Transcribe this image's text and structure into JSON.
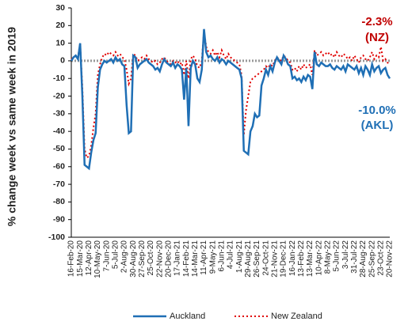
{
  "chart_data": {
    "type": "line",
    "ylabel": "% change week vs same week in 2019",
    "categories": [
      "16-Feb-20",
      null,
      null,
      null,
      "15-Mar-20",
      null,
      null,
      null,
      "12-Apr-20",
      null,
      null,
      null,
      "10-May-20",
      null,
      null,
      null,
      "7-Jun-20",
      null,
      null,
      null,
      "5-Jul-20",
      null,
      null,
      null,
      "2-Aug-20",
      null,
      null,
      null,
      "30-Aug-20",
      null,
      null,
      null,
      "27-Sep-20",
      null,
      null,
      null,
      "25-Oct-20",
      null,
      null,
      null,
      "22-Nov-20",
      null,
      null,
      null,
      "20-Dec-20",
      null,
      null,
      null,
      "17-Jan-21",
      null,
      null,
      null,
      "14-Feb-21",
      null,
      null,
      null,
      "14-Mar-21",
      null,
      null,
      null,
      "11-Apr-21",
      null,
      null,
      null,
      "9-May-21",
      null,
      null,
      null,
      "6-Jun-21",
      null,
      null,
      null,
      "4-Jul-21",
      null,
      null,
      null,
      "1-Aug-21",
      null,
      null,
      null,
      "29-Aug-21",
      null,
      null,
      null,
      "26-Sep-21",
      null,
      null,
      null,
      "24-Oct-21",
      null,
      null,
      null,
      "21-Nov-21",
      null,
      null,
      null,
      "19-Dec-21",
      null,
      null,
      null,
      "16-Jan-22",
      null,
      null,
      null,
      "13-Feb-22",
      null,
      null,
      null,
      "13-Mar-22",
      null,
      null,
      null,
      "10-Apr-22",
      null,
      null,
      null,
      "8-May-22",
      null,
      null,
      null,
      "5-Jun-22",
      null,
      null,
      null,
      "3-Jul-22",
      null,
      null,
      null,
      "31-Jul-22",
      null,
      null,
      null,
      "28-Aug-22",
      null,
      null,
      null,
      "25-Sep-22",
      null,
      null,
      null,
      "23-Oct-22",
      null,
      null,
      null,
      "20-Nov-22"
    ],
    "series": [
      {
        "name": "Auckland",
        "color": "#1f6fb5",
        "style": "solid",
        "values": [
          0,
          2,
          3,
          1,
          10,
          -20,
          -59,
          -60,
          -61,
          -52,
          -45,
          -41,
          -15,
          -5,
          -2,
          0,
          -1,
          0,
          1,
          -1,
          2,
          0,
          1,
          -2,
          -3,
          -25,
          -41,
          -40,
          3,
          2,
          -4,
          -2,
          -1,
          0,
          1,
          -1,
          -2,
          -3,
          -5,
          -4,
          -6,
          -2,
          1,
          -1,
          -2,
          -3,
          -1,
          -4,
          -2,
          -3,
          -5,
          -22,
          -4,
          -37,
          -4,
          0,
          -2,
          -10,
          -12,
          -5,
          18,
          5,
          2,
          3,
          1,
          0,
          2,
          -1,
          1,
          0,
          -2,
          0,
          -1,
          -2,
          -3,
          -4,
          -5,
          -10,
          -51,
          -52,
          -53,
          -40,
          -37,
          -30,
          -32,
          -31,
          -14,
          -10,
          -5,
          -8,
          -3,
          -6,
          -1,
          2,
          0,
          -2,
          3,
          1,
          -2,
          -3,
          -10,
          -9,
          -11,
          -10,
          -12,
          -9,
          -11,
          -8,
          -9,
          -16,
          5,
          -2,
          -3,
          -1,
          -2,
          -3,
          -3,
          -2,
          -4,
          -5,
          -3,
          -4,
          -5,
          -3,
          -6,
          -2,
          -3,
          -4,
          -5,
          -3,
          -7,
          -4,
          -8,
          -3,
          -5,
          -8,
          -2,
          -6,
          -4,
          -3,
          -7,
          -5,
          -4,
          -8,
          -10
        ]
      },
      {
        "name": "New Zealand",
        "color": "#e00000",
        "style": "dotted",
        "values": [
          1,
          2,
          3,
          2,
          10,
          -15,
          -50,
          -55,
          -54,
          -48,
          -38,
          -30,
          -8,
          -2,
          2,
          4,
          3,
          5,
          4,
          3,
          5,
          3,
          4,
          2,
          1,
          -5,
          -13,
          -10,
          4,
          3,
          0,
          1,
          2,
          1,
          3,
          1,
          0,
          -1,
          0,
          -2,
          -1,
          1,
          2,
          0,
          -1,
          -2,
          0,
          -1,
          0,
          -2,
          -1,
          -8,
          0,
          -10,
          1,
          3,
          1,
          -3,
          -4,
          0,
          17,
          8,
          5,
          4,
          6,
          3,
          5,
          2,
          6,
          3,
          1,
          4,
          2,
          1,
          0,
          -1,
          -2,
          -8,
          -42,
          -28,
          -20,
          -12,
          -10,
          -9,
          -8,
          -7,
          -6,
          -5,
          -3,
          -4,
          -2,
          -3,
          0,
          2,
          1,
          0,
          3,
          2,
          0,
          -1,
          -5,
          -4,
          -6,
          -3,
          -5,
          -2,
          -4,
          -3,
          -2,
          -8,
          6,
          3,
          4,
          5,
          3,
          4,
          5,
          3,
          4,
          2,
          5,
          3,
          2,
          4,
          3,
          1,
          2,
          0,
          3,
          1,
          -1,
          2,
          3,
          1,
          0,
          2,
          5,
          1,
          3,
          2,
          8,
          0,
          1,
          -1,
          -2.3
        ]
      }
    ],
    "annotations": [
      {
        "text": "-2.3%",
        "color": "#c00000"
      },
      {
        "text": "(NZ)",
        "color": "#c00000"
      },
      {
        "text": "-10.0%",
        "color": "#1f6fb5"
      },
      {
        "text": "(AKL)",
        "color": "#1f6fb5"
      }
    ],
    "ylim": [
      -100,
      30
    ],
    "yticks": [
      -100,
      -90,
      -80,
      -70,
      -60,
      -50,
      -40,
      -30,
      -20,
      -10,
      0,
      10,
      20,
      30
    ],
    "legend": "bottom"
  }
}
